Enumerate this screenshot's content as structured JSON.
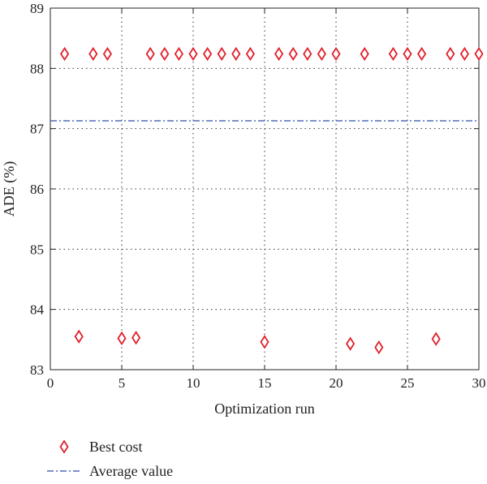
{
  "chart_data": {
    "type": "scatter",
    "xlabel": "Optimization run",
    "ylabel": "ADE (%)",
    "xlim": [
      0,
      30
    ],
    "ylim": [
      83,
      89
    ],
    "xticks": [
      0,
      5,
      10,
      15,
      20,
      25,
      30
    ],
    "yticks": [
      83,
      84,
      85,
      86,
      87,
      88,
      89
    ],
    "grid": true,
    "legend_position": "bottom-left, outside plot",
    "series": [
      {
        "name": "Best cost",
        "marker": "diamond",
        "color": "#e0202a",
        "x": [
          1,
          2,
          3,
          4,
          5,
          6,
          7,
          8,
          9,
          10,
          11,
          12,
          13,
          14,
          15,
          16,
          17,
          18,
          19,
          20,
          21,
          22,
          23,
          24,
          25,
          26,
          27,
          28,
          29,
          30
        ],
        "y": [
          88.24,
          83.55,
          88.24,
          88.24,
          83.52,
          83.53,
          88.24,
          88.24,
          88.24,
          88.24,
          88.24,
          88.24,
          88.24,
          88.24,
          83.46,
          88.24,
          88.24,
          88.24,
          88.24,
          88.24,
          83.43,
          88.24,
          83.37,
          88.24,
          88.24,
          88.24,
          83.51,
          88.24,
          88.24,
          88.24
        ]
      },
      {
        "name": "Average value",
        "line_style": "dash-dot",
        "color": "#2a4fa8",
        "x": [
          0,
          30
        ],
        "y": [
          87.13,
          87.13
        ]
      }
    ]
  }
}
